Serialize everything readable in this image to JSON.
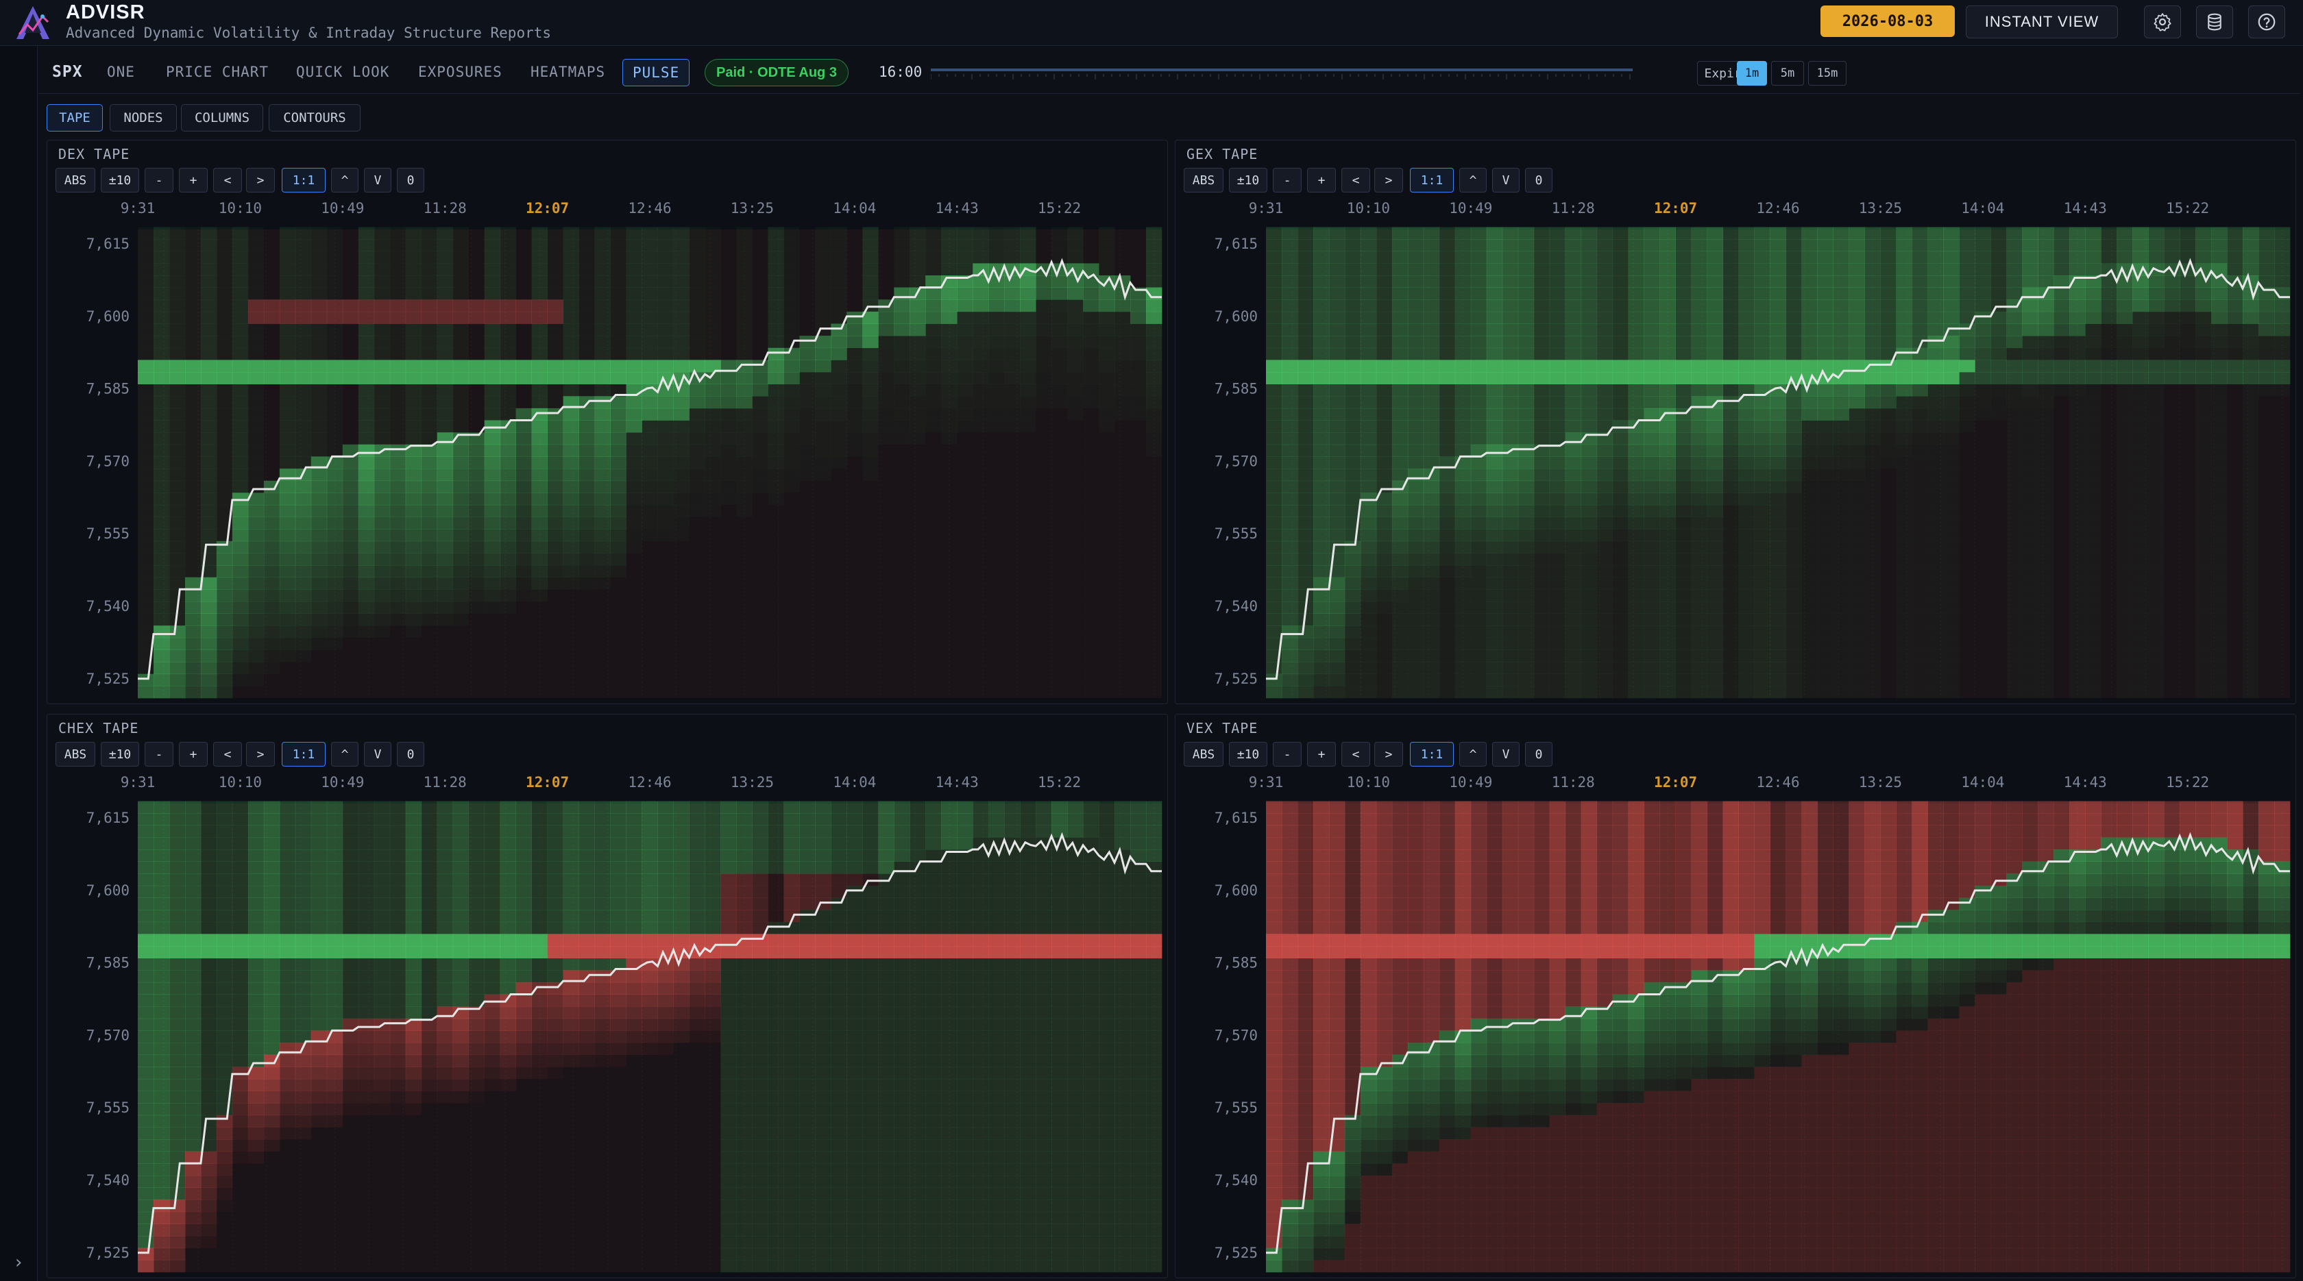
{
  "app": {
    "title": "ADVISR",
    "subtitle": "Advanced Dynamic Volatility & Intraday Structure Reports",
    "date": "2026-08-03",
    "instant_view": "INSTANT VIEW"
  },
  "nav": {
    "symbol": "SPX",
    "items": [
      "ONE",
      "PRICE CHART",
      "QUICK LOOK",
      "EXPOSURES",
      "HEATMAPS",
      "PULSE"
    ],
    "active": "PULSE",
    "pill": "Paid · ODTE Aug 3",
    "time": "16:00",
    "slider_fraction": 1.0,
    "expiry": "Expiry",
    "resolutions": [
      "1m",
      "5m",
      "15m"
    ],
    "active_resolution": "1m"
  },
  "subtabs": [
    "TAPE",
    "NODES",
    "COLUMNS",
    "CONTOURS"
  ],
  "active_subtab": "TAPE",
  "toolbar": [
    "ABS",
    "±10",
    "-",
    "+",
    "<",
    ">",
    "1:1",
    "^",
    "V",
    "0"
  ],
  "toolbar_active": "1:1",
  "icons": {
    "logo": "advisr-logo-icon",
    "settings": "gear-icon",
    "database": "database-icon",
    "help": "help-icon",
    "rail": "chevron-right-icon"
  },
  "colors": {
    "positive": "#4cd36a",
    "negative": "#e85850",
    "accent": "#e8a92c",
    "active": "#3b82f6",
    "price_line": "#e6e6e6",
    "highlight_time": "#d9982a"
  },
  "panels": [
    {
      "title": "DEX TAPE"
    },
    {
      "title": "GEX TAPE"
    },
    {
      "title": "CHEX TAPE"
    },
    {
      "title": "VEX TAPE"
    }
  ],
  "chart_data": [
    {
      "type": "heatmap",
      "title": "DEX TAPE",
      "x_ticks": [
        "9:31",
        "10:10",
        "10:49",
        "11:28",
        "12:07",
        "12:46",
        "13:25",
        "14:04",
        "14:43",
        "15:22"
      ],
      "highlight_tick": "12:07",
      "y_ticks": [
        7615,
        7600,
        7585,
        7570,
        7555,
        7540,
        7525
      ],
      "ylim": [
        7521,
        7618
      ],
      "price_series": {
        "x": [
          "9:31",
          "10:10",
          "10:49",
          "11:28",
          "12:07",
          "12:46",
          "13:25",
          "14:04",
          "14:43",
          "15:22",
          "16:00"
        ],
        "y": [
          7525,
          7562,
          7571,
          7574,
          7580,
          7585,
          7590,
          7600,
          7608,
          7610,
          7604
        ]
      }
    },
    {
      "type": "heatmap",
      "title": "GEX TAPE",
      "x_ticks": [
        "9:31",
        "10:10",
        "10:49",
        "11:28",
        "12:07",
        "12:46",
        "13:25",
        "14:04",
        "14:43",
        "15:22"
      ],
      "highlight_tick": "12:07",
      "y_ticks": [
        7615,
        7600,
        7585,
        7570,
        7555,
        7540,
        7525
      ],
      "ylim": [
        7521,
        7618
      ],
      "price_series": {
        "x": [
          "9:31",
          "10:10",
          "10:49",
          "11:28",
          "12:07",
          "12:46",
          "13:25",
          "14:04",
          "14:43",
          "15:22",
          "16:00"
        ],
        "y": [
          7525,
          7562,
          7571,
          7574,
          7580,
          7585,
          7590,
          7600,
          7608,
          7610,
          7604
        ]
      }
    },
    {
      "type": "heatmap",
      "title": "CHEX TAPE",
      "x_ticks": [
        "9:31",
        "10:10",
        "10:49",
        "11:28",
        "12:07",
        "12:46",
        "13:25",
        "14:04",
        "14:43",
        "15:22"
      ],
      "highlight_tick": "12:07",
      "y_ticks": [
        7615,
        7600,
        7585,
        7570,
        7555,
        7540,
        7525
      ],
      "ylim": [
        7521,
        7618
      ],
      "price_series": {
        "x": [
          "9:31",
          "10:10",
          "10:49",
          "11:28",
          "12:07",
          "12:46",
          "13:25",
          "14:04",
          "14:43",
          "15:22",
          "16:00"
        ],
        "y": [
          7525,
          7562,
          7571,
          7574,
          7580,
          7585,
          7590,
          7600,
          7608,
          7610,
          7604
        ]
      }
    },
    {
      "type": "heatmap",
      "title": "VEX TAPE",
      "x_ticks": [
        "9:31",
        "10:10",
        "10:49",
        "11:28",
        "12:07",
        "12:46",
        "13:25",
        "14:04",
        "14:43",
        "15:22"
      ],
      "highlight_tick": "12:07",
      "y_ticks": [
        7615,
        7600,
        7585,
        7570,
        7555,
        7540,
        7525
      ],
      "ylim": [
        7521,
        7618
      ],
      "price_series": {
        "x": [
          "9:31",
          "10:10",
          "10:49",
          "11:28",
          "12:07",
          "12:46",
          "13:25",
          "14:04",
          "14:43",
          "15:22",
          "16:00"
        ],
        "y": [
          7525,
          7562,
          7571,
          7574,
          7580,
          7585,
          7590,
          7600,
          7608,
          7610,
          7604
        ]
      }
    }
  ]
}
